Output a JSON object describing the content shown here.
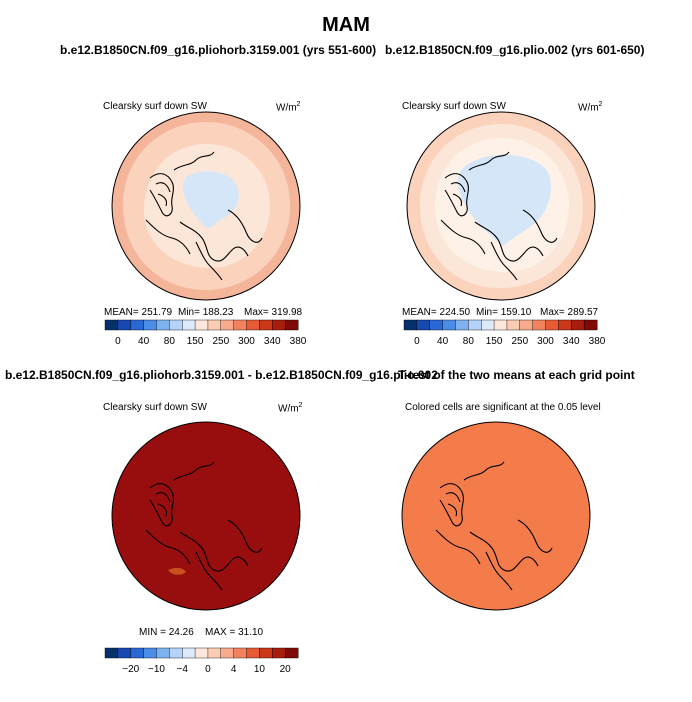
{
  "figure": {
    "title": "MAM"
  },
  "panels": [
    {
      "title": "b.e12.B1850CN.f09_g16.pliohorb.3159.001 (yrs 551-600)",
      "subtitle": "Clearsky surf down SW",
      "units": "W/m",
      "units_sup": "2",
      "stats": {
        "mean": "MEAN= 251.79",
        "min": "Min= 188.23",
        "max": "Max= 319.98"
      },
      "colors": {
        "outer": "#f5b59a",
        "mid": "#fbd3bd",
        "inner": "#fce6d8",
        "center": "#d4e6f8"
      }
    },
    {
      "title": "b.e12.B1850CN.f09_g16.plio.002 (yrs 601-650)",
      "subtitle": "Clearsky surf down SW",
      "units": "W/m",
      "units_sup": "2",
      "stats": {
        "mean": "MEAN= 224.50",
        "min": "Min= 159.10",
        "max": "Max= 289.57"
      },
      "colors": {
        "outer": "#fbd3bd",
        "mid": "#fce6d8",
        "inner": "#fdf1e8",
        "center": "#d4e6f8"
      }
    },
    {
      "title": "b.e12.B1850CN.f09_g16.pliohorb.3159.001 - b.e12.B1850CN.f09_g16.plio.002",
      "subtitle": "Clearsky surf down SW",
      "units": "W/m",
      "units_sup": "2",
      "stats": {
        "min": "MIN =  24.26",
        "max": "MAX =  31.10"
      },
      "colors": {
        "fill": "#980d0d"
      }
    },
    {
      "title": "T-test of the two means at each grid point",
      "subtitle": "Colored cells are significant at the 0.05 level",
      "colors": {
        "fill": "#f47c4b"
      }
    }
  ],
  "colorbars": [
    {
      "labels": [
        "0",
        "40",
        "80",
        "150",
        "250",
        "300",
        "340",
        "380"
      ],
      "colors": [
        "#08306b",
        "#1748b0",
        "#2a68d6",
        "#4a8ce6",
        "#7eb1f0",
        "#b5d3f8",
        "#dbe9fa",
        "#fde7da",
        "#fbccb4",
        "#f8ab8c",
        "#f1845f",
        "#e65a36",
        "#cb3718",
        "#a91d0c",
        "#7f0a06"
      ]
    },
    {
      "labels": [
        "−20",
        "−10",
        "−4",
        "0",
        "4",
        "10",
        "20"
      ],
      "colors": [
        "#08306b",
        "#1748b0",
        "#2a68d6",
        "#4a8ce6",
        "#7eb1f0",
        "#b5d3f8",
        "#dbe9fa",
        "#fde7da",
        "#fbccb4",
        "#f8ab8c",
        "#f1845f",
        "#e65a36",
        "#cb3718",
        "#a91d0c",
        "#7f0a06"
      ]
    }
  ]
}
